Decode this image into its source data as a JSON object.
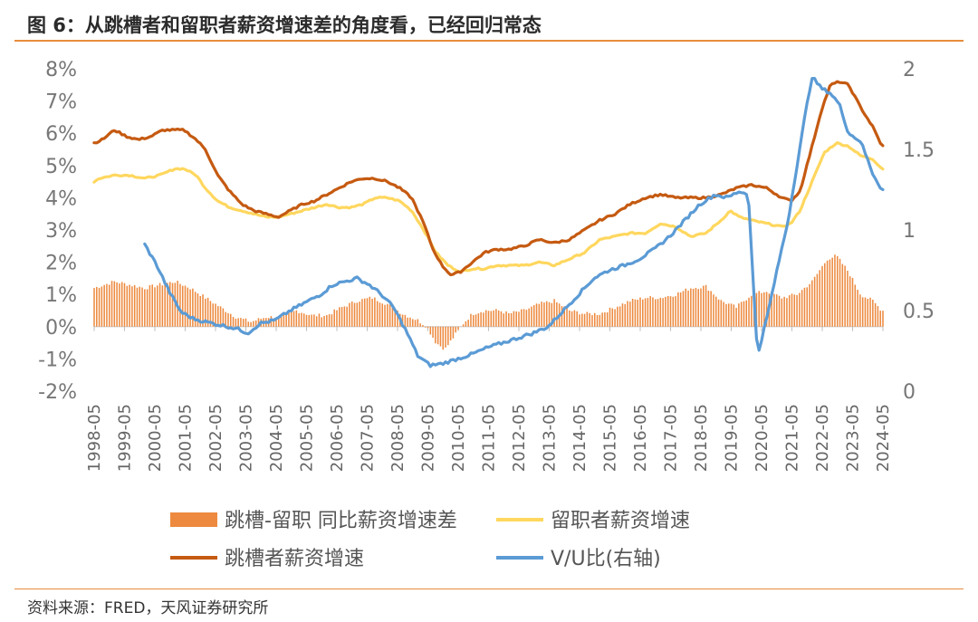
{
  "header": {
    "title": "图 6：从跳槽者和留职者薪资增速差的角度看，已经回归常态",
    "source": "资料来源：FRED，天风证券研究所"
  },
  "colors": {
    "rule": "#e88c3b",
    "gap_bars": "#ed8a3f",
    "stayer": "#ffd75e",
    "switcher": "#c55a11",
    "vu": "#5b9bd5"
  },
  "chart_data": {
    "type": "line",
    "title": "图 6：从跳槽者和留职者薪资增速差的角度看，已经回归常态",
    "y_left": {
      "min": -2,
      "max": 8,
      "format": "percent",
      "ticks": [
        "8%",
        "7%",
        "6%",
        "5%",
        "4%",
        "3%",
        "2%",
        "1%",
        "0%",
        "-1%",
        "-2%"
      ]
    },
    "y_right": {
      "min": 0,
      "max": 2,
      "label": "右轴",
      "ticks": [
        "2",
        "1.5",
        "1",
        "0.5",
        "0"
      ]
    },
    "x_axis": {
      "start": "1998-05",
      "end": "2024-05",
      "ticks": [
        "1998-05",
        "1999-05",
        "2000-05",
        "2001-05",
        "2002-05",
        "2003-05",
        "2004-05",
        "2005-05",
        "2006-05",
        "2007-05",
        "2008-05",
        "2009-05",
        "2010-05",
        "2011-05",
        "2012-05",
        "2013-05",
        "2014-05",
        "2015-05",
        "2016-05",
        "2017-05",
        "2018-05",
        "2019-05",
        "2020-05",
        "2021-05",
        "2022-05",
        "2023-05",
        "2024-05"
      ]
    },
    "legend_position": "bottom",
    "series": [
      {
        "name": "跳槽-留职 同比薪资增速差",
        "type": "bar",
        "axis": "left",
        "points": [
          [
            1998.33,
            1.2
          ],
          [
            1999.0,
            1.4
          ],
          [
            1999.5,
            1.3
          ],
          [
            2000.0,
            1.2
          ],
          [
            2000.5,
            1.3
          ],
          [
            2001.0,
            1.4
          ],
          [
            2001.5,
            1.2
          ],
          [
            2002.0,
            0.9
          ],
          [
            2002.5,
            0.6
          ],
          [
            2003.0,
            0.3
          ],
          [
            2003.5,
            0.15
          ],
          [
            2004.0,
            0.3
          ],
          [
            2004.5,
            0.3
          ],
          [
            2005.0,
            0.5
          ],
          [
            2005.5,
            0.35
          ],
          [
            2006.0,
            0.35
          ],
          [
            2006.5,
            0.6
          ],
          [
            2007.0,
            0.8
          ],
          [
            2007.5,
            0.9
          ],
          [
            2008.0,
            0.7
          ],
          [
            2008.5,
            0.4
          ],
          [
            2009.0,
            0.2
          ],
          [
            2009.3,
            0.0
          ],
          [
            2009.6,
            -0.5
          ],
          [
            2009.9,
            -0.7
          ],
          [
            2010.2,
            -0.3
          ],
          [
            2010.5,
            0.1
          ],
          [
            2010.8,
            0.4
          ],
          [
            2011.2,
            0.5
          ],
          [
            2011.7,
            0.5
          ],
          [
            2012.0,
            0.4
          ],
          [
            2012.5,
            0.5
          ],
          [
            2013.0,
            0.7
          ],
          [
            2013.5,
            0.8
          ],
          [
            2014.0,
            0.5
          ],
          [
            2014.5,
            0.4
          ],
          [
            2015.0,
            0.4
          ],
          [
            2015.5,
            0.6
          ],
          [
            2016.0,
            0.8
          ],
          [
            2016.5,
            0.9
          ],
          [
            2017.0,
            0.9
          ],
          [
            2017.5,
            1.0
          ],
          [
            2018.0,
            1.2
          ],
          [
            2018.5,
            1.25
          ],
          [
            2019.0,
            0.8
          ],
          [
            2019.5,
            0.6
          ],
          [
            2020.0,
            1.0
          ],
          [
            2020.5,
            1.1
          ],
          [
            2021.0,
            0.9
          ],
          [
            2021.5,
            1.0
          ],
          [
            2022.0,
            1.4
          ],
          [
            2022.5,
            2.1
          ],
          [
            2022.8,
            2.2
          ],
          [
            2023.2,
            1.7
          ],
          [
            2023.6,
            1.0
          ],
          [
            2024.0,
            0.8
          ],
          [
            2024.3,
            0.5
          ]
        ]
      },
      {
        "name": "留职者薪资增速",
        "type": "line",
        "axis": "left",
        "points": [
          [
            1998.33,
            4.5
          ],
          [
            1998.5,
            4.6
          ],
          [
            1999.0,
            4.7
          ],
          [
            1999.5,
            4.7
          ],
          [
            2000.0,
            4.6
          ],
          [
            2000.5,
            4.7
          ],
          [
            2001.0,
            4.9
          ],
          [
            2001.3,
            4.9
          ],
          [
            2001.7,
            4.7
          ],
          [
            2002.0,
            4.3
          ],
          [
            2002.4,
            3.9
          ],
          [
            2002.8,
            3.7
          ],
          [
            2003.2,
            3.6
          ],
          [
            2003.6,
            3.5
          ],
          [
            2004.0,
            3.4
          ],
          [
            2004.4,
            3.4
          ],
          [
            2004.8,
            3.5
          ],
          [
            2005.2,
            3.6
          ],
          [
            2005.6,
            3.7
          ],
          [
            2006.0,
            3.8
          ],
          [
            2006.4,
            3.7
          ],
          [
            2006.8,
            3.7
          ],
          [
            2007.2,
            3.8
          ],
          [
            2007.6,
            4.0
          ],
          [
            2008.0,
            4.0
          ],
          [
            2008.4,
            3.9
          ],
          [
            2008.8,
            3.6
          ],
          [
            2009.2,
            3.0
          ],
          [
            2009.6,
            2.3
          ],
          [
            2010.0,
            1.9
          ],
          [
            2010.4,
            1.7
          ],
          [
            2010.8,
            1.8
          ],
          [
            2011.2,
            1.8
          ],
          [
            2011.6,
            1.9
          ],
          [
            2012.0,
            1.9
          ],
          [
            2012.5,
            1.9
          ],
          [
            2013.0,
            2.0
          ],
          [
            2013.5,
            1.9
          ],
          [
            2014.0,
            2.1
          ],
          [
            2014.5,
            2.3
          ],
          [
            2015.0,
            2.7
          ],
          [
            2015.5,
            2.8
          ],
          [
            2016.0,
            2.9
          ],
          [
            2016.5,
            2.9
          ],
          [
            2017.0,
            3.2
          ],
          [
            2017.5,
            3.1
          ],
          [
            2018.0,
            2.8
          ],
          [
            2018.5,
            2.9
          ],
          [
            2019.0,
            3.3
          ],
          [
            2019.3,
            3.6
          ],
          [
            2019.6,
            3.4
          ],
          [
            2020.0,
            3.3
          ],
          [
            2020.5,
            3.2
          ],
          [
            2021.0,
            3.1
          ],
          [
            2021.3,
            3.2
          ],
          [
            2021.6,
            3.6
          ],
          [
            2022.0,
            4.5
          ],
          [
            2022.4,
            5.4
          ],
          [
            2022.8,
            5.7
          ],
          [
            2023.2,
            5.6
          ],
          [
            2023.6,
            5.3
          ],
          [
            2024.0,
            5.2
          ],
          [
            2024.3,
            4.9
          ]
        ]
      },
      {
        "name": "跳槽者薪资增速",
        "type": "line",
        "axis": "left",
        "points": [
          [
            1998.33,
            5.7
          ],
          [
            1998.6,
            5.8
          ],
          [
            1999.0,
            6.1
          ],
          [
            1999.4,
            5.9
          ],
          [
            1999.8,
            5.8
          ],
          [
            2000.2,
            5.9
          ],
          [
            2000.6,
            6.1
          ],
          [
            2001.0,
            6.1
          ],
          [
            2001.3,
            6.1
          ],
          [
            2001.7,
            5.8
          ],
          [
            2002.0,
            5.5
          ],
          [
            2002.4,
            4.7
          ],
          [
            2002.8,
            4.2
          ],
          [
            2003.2,
            3.8
          ],
          [
            2003.6,
            3.6
          ],
          [
            2004.0,
            3.5
          ],
          [
            2004.4,
            3.4
          ],
          [
            2004.8,
            3.6
          ],
          [
            2005.2,
            3.8
          ],
          [
            2005.6,
            3.9
          ],
          [
            2006.0,
            4.1
          ],
          [
            2006.4,
            4.3
          ],
          [
            2006.8,
            4.5
          ],
          [
            2007.2,
            4.6
          ],
          [
            2007.6,
            4.6
          ],
          [
            2008.0,
            4.5
          ],
          [
            2008.4,
            4.3
          ],
          [
            2008.8,
            4.0
          ],
          [
            2009.2,
            3.2
          ],
          [
            2009.5,
            2.4
          ],
          [
            2009.8,
            1.9
          ],
          [
            2010.1,
            1.6
          ],
          [
            2010.4,
            1.7
          ],
          [
            2010.8,
            2.0
          ],
          [
            2011.2,
            2.3
          ],
          [
            2011.6,
            2.4
          ],
          [
            2012.0,
            2.4
          ],
          [
            2012.5,
            2.5
          ],
          [
            2013.0,
            2.7
          ],
          [
            2013.5,
            2.6
          ],
          [
            2014.0,
            2.7
          ],
          [
            2014.5,
            3.0
          ],
          [
            2015.0,
            3.3
          ],
          [
            2015.5,
            3.5
          ],
          [
            2016.0,
            3.8
          ],
          [
            2016.5,
            4.0
          ],
          [
            2017.0,
            4.1
          ],
          [
            2017.5,
            4.0
          ],
          [
            2018.0,
            4.0
          ],
          [
            2018.5,
            4.0
          ],
          [
            2019.0,
            4.1
          ],
          [
            2019.5,
            4.3
          ],
          [
            2020.0,
            4.4
          ],
          [
            2020.5,
            4.3
          ],
          [
            2021.0,
            4.0
          ],
          [
            2021.3,
            3.9
          ],
          [
            2021.6,
            4.2
          ],
          [
            2022.0,
            5.6
          ],
          [
            2022.3,
            6.7
          ],
          [
            2022.6,
            7.5
          ],
          [
            2022.9,
            7.6
          ],
          [
            2023.2,
            7.5
          ],
          [
            2023.6,
            6.8
          ],
          [
            2024.0,
            6.2
          ],
          [
            2024.3,
            5.6
          ]
        ]
      },
      {
        "name": "V/U比(右轴)",
        "type": "line",
        "axis": "right",
        "points": [
          [
            2000.0,
            0.91
          ],
          [
            2000.4,
            0.78
          ],
          [
            2000.8,
            0.62
          ],
          [
            2001.2,
            0.49
          ],
          [
            2001.6,
            0.45
          ],
          [
            2002.0,
            0.43
          ],
          [
            2002.5,
            0.41
          ],
          [
            2003.0,
            0.39
          ],
          [
            2003.4,
            0.36
          ],
          [
            2003.8,
            0.42
          ],
          [
            2004.3,
            0.44
          ],
          [
            2004.8,
            0.5
          ],
          [
            2005.3,
            0.55
          ],
          [
            2005.8,
            0.6
          ],
          [
            2006.2,
            0.66
          ],
          [
            2006.6,
            0.68
          ],
          [
            2007.0,
            0.7
          ],
          [
            2007.4,
            0.66
          ],
          [
            2007.8,
            0.6
          ],
          [
            2008.2,
            0.52
          ],
          [
            2008.6,
            0.38
          ],
          [
            2009.0,
            0.22
          ],
          [
            2009.4,
            0.16
          ],
          [
            2009.8,
            0.17
          ],
          [
            2010.3,
            0.2
          ],
          [
            2010.8,
            0.23
          ],
          [
            2011.3,
            0.27
          ],
          [
            2011.8,
            0.3
          ],
          [
            2012.3,
            0.33
          ],
          [
            2012.8,
            0.36
          ],
          [
            2013.3,
            0.4
          ],
          [
            2013.8,
            0.5
          ],
          [
            2014.3,
            0.6
          ],
          [
            2014.8,
            0.7
          ],
          [
            2015.3,
            0.75
          ],
          [
            2015.8,
            0.78
          ],
          [
            2016.3,
            0.82
          ],
          [
            2016.8,
            0.88
          ],
          [
            2017.3,
            0.96
          ],
          [
            2017.8,
            1.06
          ],
          [
            2018.3,
            1.16
          ],
          [
            2018.8,
            1.22
          ],
          [
            2019.2,
            1.2
          ],
          [
            2019.6,
            1.24
          ],
          [
            2019.9,
            1.22
          ],
          [
            2020.05,
            0.7
          ],
          [
            2020.2,
            0.22
          ],
          [
            2020.5,
            0.45
          ],
          [
            2020.9,
            0.8
          ],
          [
            2021.2,
            1.05
          ],
          [
            2021.5,
            1.4
          ],
          [
            2021.8,
            1.75
          ],
          [
            2022.0,
            1.95
          ],
          [
            2022.3,
            1.88
          ],
          [
            2022.6,
            1.85
          ],
          [
            2022.9,
            1.78
          ],
          [
            2023.2,
            1.6
          ],
          [
            2023.6,
            1.55
          ],
          [
            2024.0,
            1.35
          ],
          [
            2024.3,
            1.25
          ]
        ]
      }
    ]
  }
}
